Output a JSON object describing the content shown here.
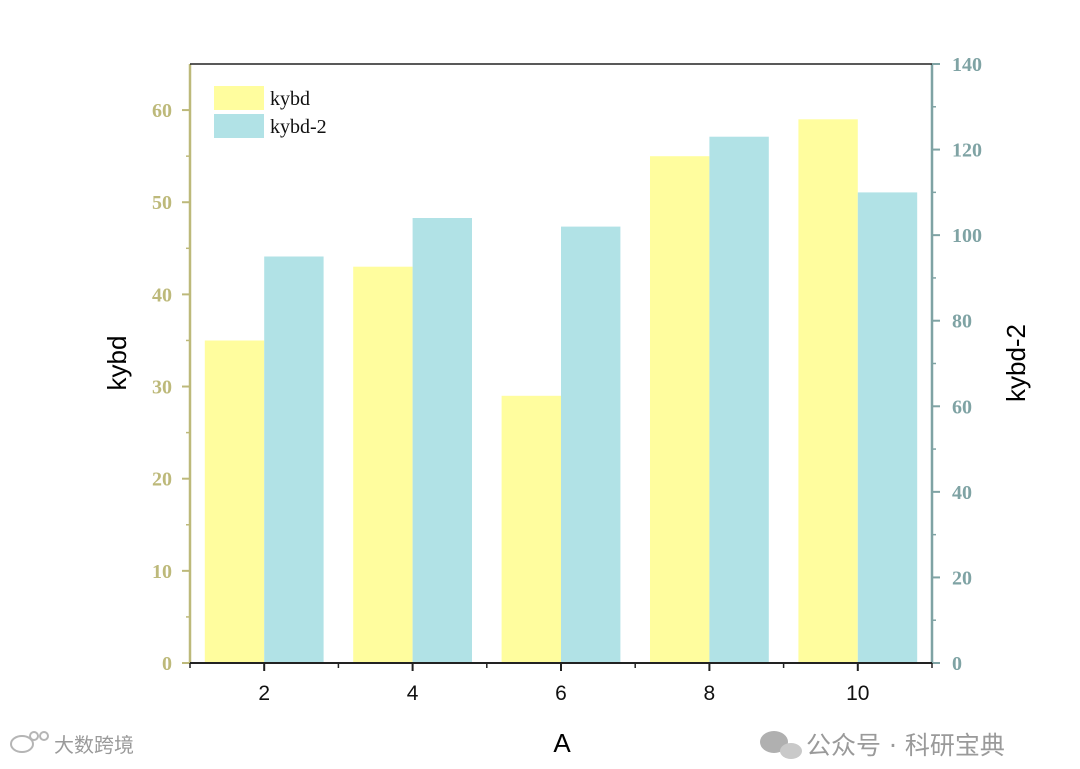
{
  "chart_data": {
    "type": "bar",
    "xlabel": "A",
    "categories": [
      "2",
      "4",
      "6",
      "8",
      "10"
    ],
    "series": [
      {
        "name": "kybd",
        "axis": "left",
        "color": "#fffd9e",
        "values": [
          35,
          43,
          29,
          55,
          59
        ]
      },
      {
        "name": "kybd-2",
        "axis": "right",
        "color": "#b1e2e6",
        "values": [
          95,
          104,
          102,
          123,
          110
        ]
      }
    ],
    "y_left": {
      "label": "kybd",
      "lim": [
        0,
        65
      ],
      "ticks": [
        0,
        10,
        20,
        30,
        40,
        50,
        60
      ],
      "color": "#bdb97a"
    },
    "y_right": {
      "label": "kybd-2",
      "lim": [
        0,
        140
      ],
      "ticks": [
        0,
        20,
        40,
        60,
        80,
        100,
        120,
        140
      ],
      "color": "#7fa3a4"
    },
    "legend": {
      "position": "top-left"
    },
    "grid": false
  },
  "watermarks": {
    "left": "大数跨境",
    "right": "公众号 · 科研宝典"
  }
}
